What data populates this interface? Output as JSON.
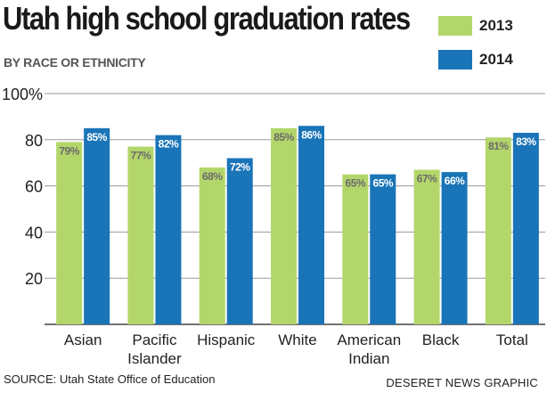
{
  "header": {
    "title": "Utah high school graduation rates",
    "subtitle": "BY RACE OR ETHNICITY"
  },
  "footer": {
    "source": "SOURCE: Utah State Office of Education",
    "credit": "DESERET NEWS GRAPHIC"
  },
  "colors": {
    "series_2013": "#b3d66b",
    "series_2014": "#1a74b8",
    "gridline": "#9a9a9a",
    "label_2013": "#6b6b6b",
    "label_2014": "#ffffff"
  },
  "chart_data": {
    "type": "bar",
    "title": "Utah high school graduation rates",
    "subtitle": "BY RACE OR ETHNICITY",
    "xlabel": "",
    "ylabel": "",
    "ylim": [
      0,
      100
    ],
    "yticks": [
      20,
      40,
      60,
      80,
      100
    ],
    "ytick_labels": [
      "20",
      "40",
      "60",
      "80",
      "100%"
    ],
    "grid": true,
    "legend_position": "top-right",
    "categories": [
      [
        "Asian"
      ],
      [
        "Pacific",
        "Islander"
      ],
      [
        "Hispanic"
      ],
      [
        "White"
      ],
      [
        "American",
        "Indian"
      ],
      [
        "Black"
      ],
      [
        "Total"
      ]
    ],
    "series": [
      {
        "name": "2013",
        "values": [
          79,
          77,
          68,
          85,
          65,
          67,
          81
        ],
        "labels": [
          "79%",
          "77%",
          "68%",
          "85%",
          "65%",
          "67%",
          "81%"
        ]
      },
      {
        "name": "2014",
        "values": [
          85,
          82,
          72,
          86,
          65,
          66,
          83
        ],
        "labels": [
          "85%",
          "82%",
          "72%",
          "86%",
          "65%",
          "66%",
          "83%"
        ]
      }
    ]
  }
}
